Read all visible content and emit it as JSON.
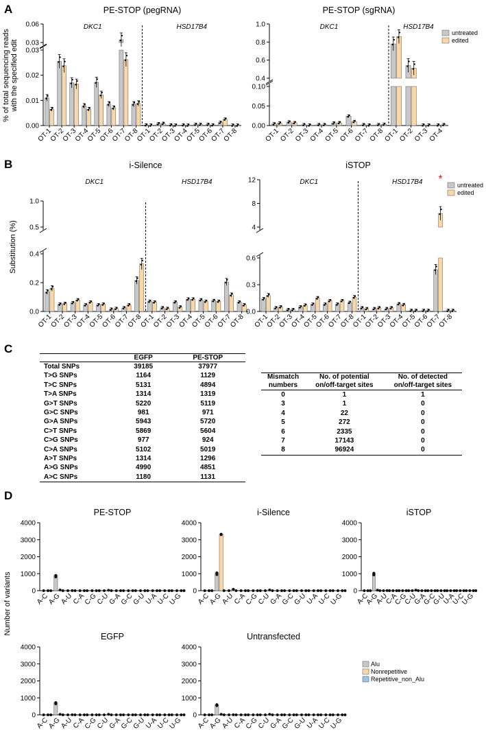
{
  "panels": {
    "a": "A",
    "b": "B",
    "c": "C",
    "d": "D"
  },
  "colors": {
    "untreated": "#c8c8c8",
    "edited": "#f9d7a7",
    "rep": "#9ec4e3",
    "axis": "#000",
    "star": "#e01b1b"
  },
  "chart_data": [
    {
      "id": "A1",
      "type": "bar",
      "title": "PE-STOP (pegRNA)",
      "ylabel": "% of total sequencing reads\nwith the specified edit",
      "genes": [
        "DKC1",
        "HSD17B4"
      ],
      "categories": [
        "OT-1",
        "OT-2",
        "OT-3",
        "OT-4",
        "OT-5",
        "OT-6",
        "OT-7",
        "OT-8",
        "OT-1",
        "OT-2",
        "OT-3",
        "OT-4",
        "OT-5",
        "OT-6",
        "OT-7",
        "OT-8"
      ],
      "series": [
        {
          "name": "untreated",
          "values": [
            0.011,
            0.0255,
            0.017,
            0.0078,
            0.0172,
            0.0085,
            0.0345,
            0.0085,
            0.0002,
            0.0007,
            0.0002,
            0.0002,
            0.0004,
            0.0004,
            0.0012,
            0.0001
          ]
        },
        {
          "name": "edited",
          "values": [
            0.0065,
            0.0238,
            0.0165,
            0.0065,
            0.0122,
            0.007,
            0.0262,
            0.0088,
            0.0001,
            0.0008,
            0.0001,
            0.0001,
            0.0004,
            0.0002,
            0.0025,
            0.0001
          ]
        }
      ],
      "ylim_low": [
        0,
        0.03
      ],
      "ylim_high": [
        0.03,
        0.06
      ],
      "ticks_low": [
        "0.00",
        "0.01",
        "0.02",
        "0.03"
      ],
      "ticks_high": [
        "0.03",
        "0.06"
      ]
    },
    {
      "id": "A2",
      "type": "bar",
      "title": "PE-STOP (sgRNA)",
      "genes": [
        "DKC1",
        "HSD17B4"
      ],
      "categories": [
        "OT-1",
        "OT-2",
        "OT-3",
        "OT-4",
        "OT-5",
        "OT-6",
        "OT-7",
        "OT-8",
        "OT-1",
        "OT-2",
        "OT-3",
        "OT-4"
      ],
      "series": [
        {
          "name": "untreated",
          "values": [
            0.004,
            0.009,
            0.002,
            0.002,
            0.006,
            0.024,
            0.002,
            0.002,
            0.78,
            0.54,
            0.001,
            0.001
          ]
        },
        {
          "name": "edited",
          "values": [
            0.006,
            0.007,
            0.001,
            0.002,
            0.007,
            0.01,
            0.001,
            0.003,
            0.86,
            0.51,
            0.001,
            0.002
          ]
        }
      ],
      "ylim_low": [
        0,
        0.1
      ],
      "ylim_high": [
        0.4,
        1.0
      ],
      "ticks_low": [
        "0.00",
        "0.05",
        "0.10"
      ],
      "ticks_high": [
        "0.4",
        "0.6",
        "0.8",
        "1.0"
      ],
      "legend": [
        "untreated",
        "edited"
      ]
    },
    {
      "id": "B1",
      "type": "bar",
      "title": "i-Silence",
      "ylabel": "Substitution (%)",
      "genes": [
        "DKC1",
        "HSD17B4"
      ],
      "categories": [
        "OT-1",
        "OT-2",
        "OT-3",
        "OT-4",
        "OT-5",
        "OT-6",
        "OT-7",
        "OT-8",
        "OT-1",
        "OT-2",
        "OT-3",
        "OT-4",
        "OT-5",
        "OT-6",
        "OT-7",
        "OT-8"
      ],
      "series": [
        {
          "name": "untreated",
          "values": [
            0.135,
            0.05,
            0.06,
            0.045,
            0.045,
            0.015,
            0.025,
            0.215,
            0.07,
            0.025,
            0.065,
            0.085,
            0.08,
            0.075,
            0.205,
            0.065
          ]
        },
        {
          "name": "edited",
          "values": [
            0.16,
            0.055,
            0.08,
            0.065,
            0.05,
            0.02,
            0.045,
            0.33,
            0.065,
            0.02,
            0.03,
            0.085,
            0.07,
            0.07,
            0.115,
            0.045
          ]
        }
      ],
      "ylim_low": [
        0,
        0.4
      ],
      "ylim_high": [
        0.5,
        1.0
      ],
      "ticks_low": [
        "0.0",
        "0.2",
        "0.4"
      ],
      "ticks_high": [
        "0.5",
        "1.0"
      ]
    },
    {
      "id": "B2",
      "type": "bar",
      "title": "iSTOP",
      "genes": [
        "DKC1",
        "HSD17B4"
      ],
      "categories": [
        "OT-1",
        "OT-2",
        "OT-3",
        "OT-4",
        "OT-5",
        "OT-6",
        "OT-7",
        "OT-8",
        "OT-1",
        "OT-2",
        "OT-3",
        "OT-4",
        "OT-5",
        "OT-6",
        "OT-7",
        "OT-8"
      ],
      "series": [
        {
          "name": "untreated",
          "values": [
            0.14,
            0.04,
            0.02,
            0.05,
            0.08,
            0.08,
            0.08,
            0.1,
            0.04,
            0.03,
            0.03,
            0.085,
            0.01,
            0.01,
            0.47,
            0.01
          ]
        },
        {
          "name": "edited",
          "values": [
            0.18,
            0.05,
            0.02,
            0.07,
            0.15,
            0.12,
            0.12,
            0.16,
            0.03,
            0.04,
            0.04,
            0.075,
            0.01,
            0.01,
            6.3,
            0.01
          ]
        }
      ],
      "ylim_low": [
        0,
        0.6
      ],
      "ylim_high": [
        4,
        12
      ],
      "ticks_low": [
        "0.0",
        "0.3",
        "0.6"
      ],
      "ticks_high": [
        "4",
        "8",
        "12"
      ],
      "legend": [
        "untreated",
        "edited"
      ],
      "annotation": "*"
    },
    {
      "id": "D",
      "type": "bar",
      "ylabel": "Number of variants",
      "categories": [
        "A-C",
        "A-G",
        "A-U",
        "C-A",
        "C-G",
        "C-U",
        "G-A",
        "G-C",
        "G-U",
        "U-A",
        "U-C",
        "U-G"
      ],
      "ylim": [
        0,
        4000
      ],
      "ticks": [
        "0",
        "1000",
        "2000",
        "3000",
        "4000"
      ],
      "legend": [
        "Alu",
        "Nonrepetitive",
        "Repetitive_non_Alu"
      ],
      "subplots": [
        {
          "title": "PE-STOP",
          "alu": [
            0,
            900,
            0,
            0,
            0,
            0,
            0,
            0,
            0,
            0,
            0,
            0
          ],
          "nonrep": [
            0,
            40,
            5,
            0,
            0,
            25,
            0,
            0,
            0,
            0,
            0,
            0
          ]
        },
        {
          "title": "i-Silence",
          "alu": [
            0,
            1050,
            0,
            0,
            0,
            0,
            0,
            0,
            0,
            0,
            0,
            0
          ],
          "nonrep": [
            0,
            3330,
            80,
            0,
            0,
            40,
            0,
            0,
            0,
            0,
            0,
            0
          ]
        },
        {
          "title": "iSTOP",
          "alu": [
            0,
            1030,
            0,
            0,
            0,
            0,
            0,
            0,
            0,
            0,
            0,
            0
          ],
          "nonrep": [
            0,
            30,
            5,
            0,
            0,
            30,
            0,
            0,
            0,
            0,
            0,
            0
          ]
        },
        {
          "title": "EGFP",
          "alu": [
            0,
            720,
            0,
            0,
            0,
            0,
            0,
            0,
            0,
            0,
            0,
            0
          ],
          "nonrep": [
            0,
            30,
            5,
            0,
            0,
            30,
            0,
            0,
            0,
            0,
            0,
            0
          ]
        },
        {
          "title": "Untransfected",
          "alu": [
            0,
            600,
            0,
            0,
            0,
            0,
            0,
            0,
            0,
            0,
            0,
            0
          ],
          "nonrep": [
            0,
            30,
            5,
            0,
            0,
            30,
            0,
            0,
            0,
            0,
            0,
            0
          ]
        }
      ]
    }
  ],
  "table_snps": {
    "headers": [
      "",
      "EGFP",
      "PE-STOP"
    ],
    "rows": [
      [
        "Total SNPs",
        "39185",
        "37977"
      ],
      [
        "T>G SNPs",
        "1164",
        "1129"
      ],
      [
        "T>C SNPs",
        "5131",
        "4894"
      ],
      [
        "T>A SNPs",
        "1314",
        "1319"
      ],
      [
        "G>T SNPs",
        "5220",
        "5119"
      ],
      [
        "G>C SNPs",
        "981",
        "971"
      ],
      [
        "G>A SNPs",
        "5943",
        "5720"
      ],
      [
        "C>T SNPs",
        "5869",
        "5604"
      ],
      [
        "C>G SNPs",
        "977",
        "924"
      ],
      [
        "C>A SNPs",
        "5102",
        "5019"
      ],
      [
        "A>T SNPs",
        "1314",
        "1296"
      ],
      [
        "A>G SNPs",
        "4990",
        "4851"
      ],
      [
        "A>C SNPs",
        "1180",
        "1131"
      ]
    ]
  },
  "table_mismatch": {
    "headers": [
      "Mismatch numbers",
      "No. of potential on/off-target sites",
      "No. of detected on/off-target sites"
    ],
    "rows": [
      [
        "0",
        "1",
        "1"
      ],
      [
        "3",
        "1",
        "0"
      ],
      [
        "4",
        "22",
        "0"
      ],
      [
        "5",
        "272",
        "0"
      ],
      [
        "6",
        "2335",
        "0"
      ],
      [
        "7",
        "17143",
        "0"
      ],
      [
        "8",
        "96924",
        "0"
      ]
    ]
  }
}
